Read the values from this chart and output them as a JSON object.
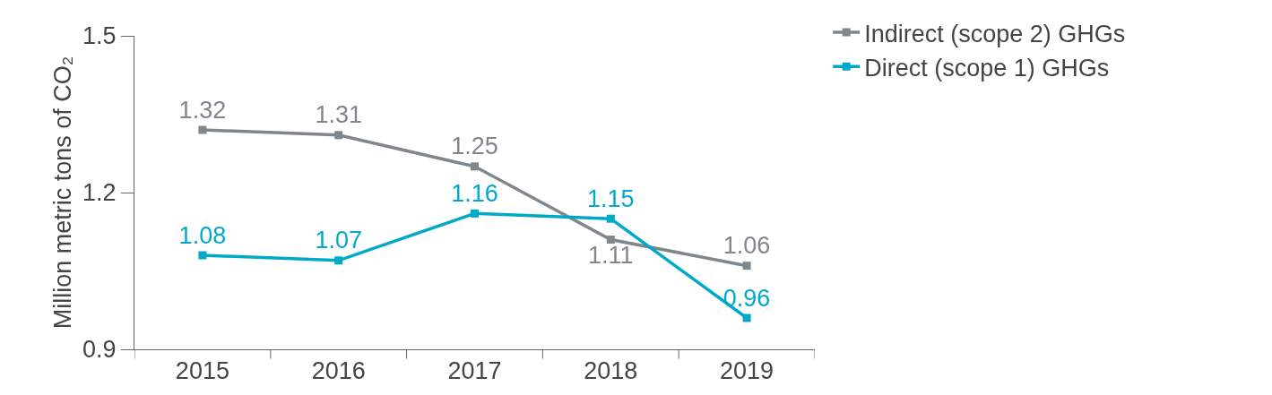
{
  "chart_data": {
    "type": "line",
    "ylabel": "Million metric tons of CO₂",
    "categories": [
      "2015",
      "2016",
      "2017",
      "2018",
      "2019"
    ],
    "series": [
      {
        "name": "Indirect (scope 2) GHGs",
        "color": "#7f868c",
        "values": [
          1.32,
          1.31,
          1.25,
          1.11,
          1.06
        ]
      },
      {
        "name": "Direct (scope 1) GHGs",
        "color": "#00a9c8",
        "values": [
          1.08,
          1.07,
          1.16,
          1.15,
          0.96
        ]
      }
    ],
    "ylim": [
      0.9,
      1.5
    ],
    "yticks": [
      0.9,
      1.2,
      1.5
    ],
    "data_labels": true,
    "marker": "square",
    "line_style": "solid",
    "legend": "top right"
  }
}
